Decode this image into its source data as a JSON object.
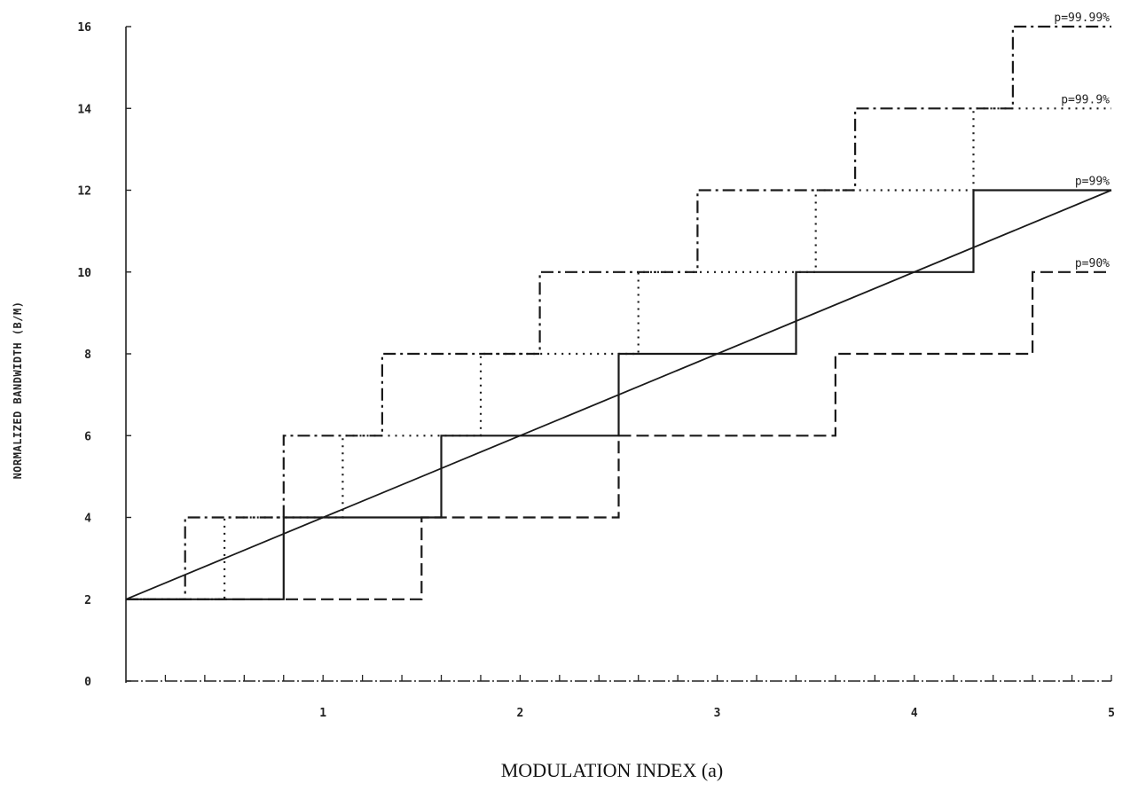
{
  "chart_data": {
    "type": "line",
    "title": "",
    "xlabel": "MODULATION INDEX (a)",
    "ylabel": "NORMALIZED BANDWIDTH (B/M)",
    "xlim": [
      0,
      5
    ],
    "ylim": [
      0,
      16
    ],
    "x_ticks": [
      1,
      2,
      3,
      4,
      5
    ],
    "x_tick_labels": [
      "1",
      "2",
      "3",
      "4",
      "5"
    ],
    "x_minor_step": 0.2,
    "y_ticks": [
      0,
      2,
      4,
      6,
      8,
      10,
      12,
      14,
      16
    ],
    "y_tick_labels": [
      "0",
      "2",
      "4",
      "6",
      "8",
      "10",
      "12",
      "14",
      "16"
    ],
    "grid": false,
    "legend": "inline labels at right end of each series",
    "series": [
      {
        "name": "p=90%",
        "style": "dashed",
        "points": [
          [
            0,
            2
          ],
          [
            1.5,
            2
          ],
          [
            1.5,
            4
          ],
          [
            2.5,
            4
          ],
          [
            2.5,
            6
          ],
          [
            3.6,
            6
          ],
          [
            3.6,
            8
          ],
          [
            4.6,
            8
          ],
          [
            4.6,
            10
          ],
          [
            5,
            10
          ]
        ]
      },
      {
        "name": "p=99%",
        "style": "solid",
        "points": [
          [
            0,
            2
          ],
          [
            0.8,
            2
          ],
          [
            0.8,
            4
          ],
          [
            1.6,
            4
          ],
          [
            1.6,
            6
          ],
          [
            2.5,
            6
          ],
          [
            2.5,
            8
          ],
          [
            3.4,
            8
          ],
          [
            3.4,
            10
          ],
          [
            4.3,
            10
          ],
          [
            4.3,
            12
          ],
          [
            5,
            12
          ]
        ]
      },
      {
        "name": "p=99.9%",
        "style": "dotted",
        "points": [
          [
            0,
            2
          ],
          [
            0.5,
            2
          ],
          [
            0.5,
            4
          ],
          [
            1.1,
            4
          ],
          [
            1.1,
            6
          ],
          [
            1.8,
            6
          ],
          [
            1.8,
            8
          ],
          [
            2.6,
            8
          ],
          [
            2.6,
            10
          ],
          [
            3.5,
            10
          ],
          [
            3.5,
            12
          ],
          [
            4.3,
            12
          ],
          [
            4.3,
            14
          ],
          [
            5,
            14
          ]
        ]
      },
      {
        "name": "p=99.99%",
        "style": "dash-dot",
        "points": [
          [
            0,
            2
          ],
          [
            0.3,
            2
          ],
          [
            0.3,
            4
          ],
          [
            0.8,
            4
          ],
          [
            0.8,
            6
          ],
          [
            1.3,
            6
          ],
          [
            1.3,
            8
          ],
          [
            2.1,
            8
          ],
          [
            2.1,
            10
          ],
          [
            2.9,
            10
          ],
          [
            2.9,
            12
          ],
          [
            3.7,
            12
          ],
          [
            3.7,
            14
          ],
          [
            4.5,
            14
          ],
          [
            4.5,
            16
          ],
          [
            5,
            16
          ]
        ]
      },
      {
        "name": "",
        "style": "solid-thin",
        "points": [
          [
            0,
            2
          ],
          [
            5,
            12
          ]
        ]
      }
    ]
  }
}
